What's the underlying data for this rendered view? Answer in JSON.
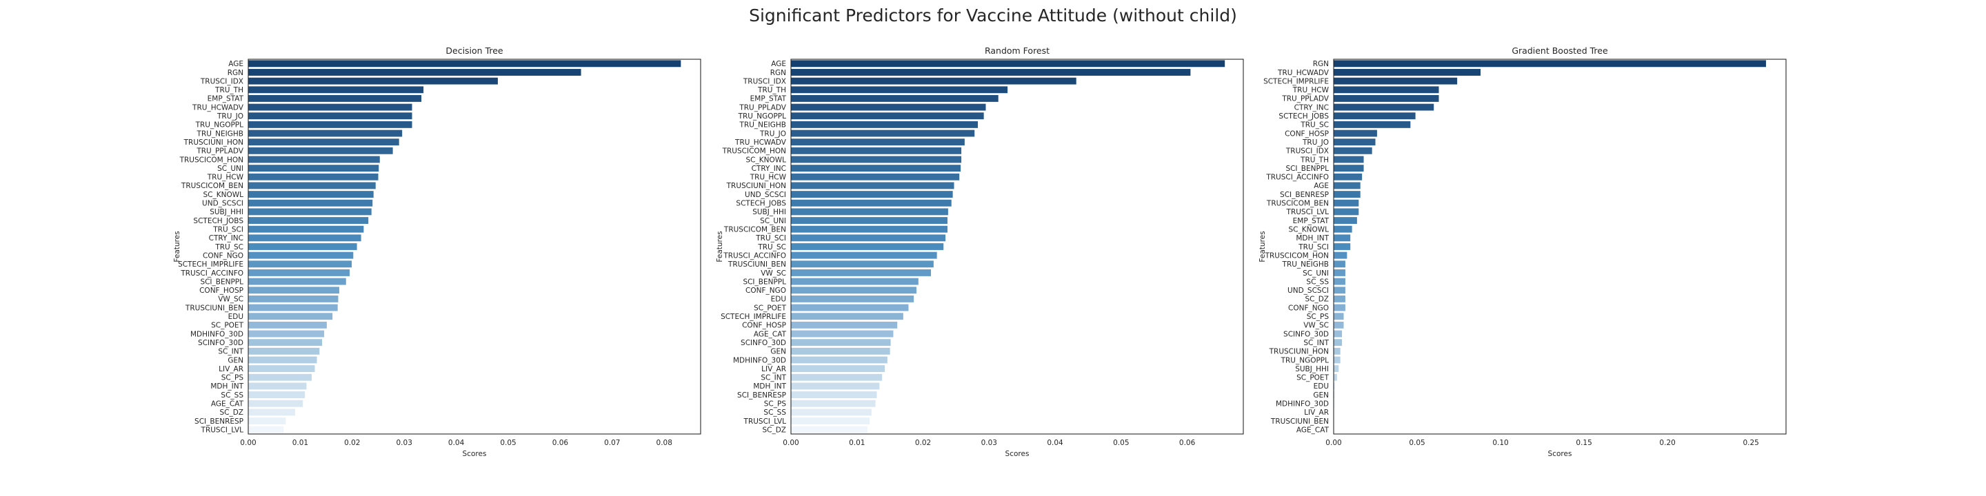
{
  "figure": {
    "title": "Significant Predictors for Vaccine Attitude (without child)"
  },
  "chart_data": [
    {
      "type": "bar",
      "orientation": "horizontal",
      "title": "Decision Tree",
      "xlabel": "Scores",
      "ylabel": "Features",
      "xlim": [
        0,
        0.087
      ],
      "xticks": [
        "0.00",
        "0.01",
        "0.02",
        "0.03",
        "0.04",
        "0.05",
        "0.06",
        "0.07",
        "0.08"
      ],
      "xtick_values": [
        0,
        0.01,
        0.02,
        0.03,
        0.04,
        0.05,
        0.06,
        0.07,
        0.08
      ],
      "grid": false,
      "colormap": "Blues_r",
      "categories": [
        "AGE",
        "RGN",
        "TRUSCI_IDX",
        "TRU_TH",
        "EMP_STAT",
        "TRU_HCWADV",
        "TRU_JO",
        "TRU_NGOPPL",
        "TRU_NEIGHB",
        "TRUSCIUNI_HON",
        "TRU_PPLADV",
        "TRUSCICOM_HON",
        "SC_UNI",
        "TRU_HCW",
        "TRUSCICOM_BEN",
        "SC_KNOWL",
        "UND_SCSCI",
        "SUBJ_HHI",
        "SCTECH_JOBS",
        "TRU_SCI",
        "CTRY_INC",
        "TRU_SC",
        "CONF_NGO",
        "SCTECH_IMPRLIFE",
        "TRUSCI_ACCINFO",
        "SCI_BENPPL",
        "CONF_HOSP",
        "VW_SC",
        "TRUSCIUNI_BEN",
        "EDU",
        "SC_POET",
        "MDHINFO_30D",
        "SCINFO_30D",
        "SC_INT",
        "GEN",
        "LIV_AR",
        "SC_PS",
        "MDH_INT",
        "SC_SS",
        "AGE_CAT",
        "SC_DZ",
        "SCI_BENRESP",
        "TRUSCI_LVL"
      ],
      "values": [
        0.0832,
        0.064,
        0.048,
        0.0337,
        0.0333,
        0.0315,
        0.0315,
        0.0315,
        0.0296,
        0.029,
        0.0278,
        0.0253,
        0.0251,
        0.025,
        0.0245,
        0.0241,
        0.0239,
        0.0237,
        0.0231,
        0.0222,
        0.0217,
        0.0209,
        0.0202,
        0.0199,
        0.0195,
        0.0188,
        0.0175,
        0.0173,
        0.0172,
        0.0162,
        0.0151,
        0.0146,
        0.0142,
        0.0137,
        0.0132,
        0.0128,
        0.0122,
        0.0112,
        0.0109,
        0.0105,
        0.009,
        0.0072,
        0.0068
      ]
    },
    {
      "type": "bar",
      "orientation": "horizontal",
      "title": "Random Forest",
      "xlabel": "Scores",
      "ylabel": "Features",
      "xlim": [
        0,
        0.0685
      ],
      "xticks": [
        "0.00",
        "0.01",
        "0.02",
        "0.03",
        "0.04",
        "0.05",
        "0.06"
      ],
      "xtick_values": [
        0,
        0.01,
        0.02,
        0.03,
        0.04,
        0.05,
        0.06
      ],
      "grid": false,
      "colormap": "Blues_r",
      "categories": [
        "AGE",
        "RGN",
        "TRUSCI_IDX",
        "TRU_TH",
        "EMP_STAT",
        "TRU_PPLADV",
        "TRU_NGOPPL",
        "TRU_NEIGHB",
        "TRU_JO",
        "TRU_HCWADV",
        "TRUSCICOM_HON",
        "SC_KNOWL",
        "CTRY_INC",
        "TRU_HCW",
        "TRUSCIUNI_HON",
        "UND_SCSCI",
        "SCTECH_JOBS",
        "SUBJ_HHI",
        "SC_UNI",
        "TRUSCICOM_BEN",
        "TRU_SCI",
        "TRU_SC",
        "TRUSCI_ACCINFO",
        "TRUSCIUNI_BEN",
        "VW_SC",
        "SCI_BENPPL",
        "CONF_NGO",
        "EDU",
        "SC_POET",
        "SCTECH_IMPRLIFE",
        "CONF_HOSP",
        "AGE_CAT",
        "SCINFO_30D",
        "GEN",
        "MDHINFO_30D",
        "LIV_AR",
        "SC_INT",
        "MDH_INT",
        "SCI_BENRESP",
        "SC_PS",
        "SC_SS",
        "TRUSCI_LVL",
        "SC_DZ"
      ],
      "values": [
        0.0657,
        0.0605,
        0.0432,
        0.0328,
        0.0314,
        0.0295,
        0.0292,
        0.0283,
        0.0278,
        0.0263,
        0.0258,
        0.0258,
        0.0257,
        0.0255,
        0.0247,
        0.0245,
        0.0243,
        0.0238,
        0.0237,
        0.0237,
        0.0234,
        0.0231,
        0.0221,
        0.0216,
        0.0212,
        0.0193,
        0.019,
        0.0186,
        0.0178,
        0.017,
        0.0161,
        0.0155,
        0.0151,
        0.015,
        0.0146,
        0.0142,
        0.0138,
        0.0134,
        0.013,
        0.0128,
        0.0122,
        0.0119,
        0.0116
      ]
    },
    {
      "type": "bar",
      "orientation": "horizontal",
      "title": "Gradient Boosted Tree",
      "xlabel": "Scores",
      "ylabel": "Features",
      "xlim": [
        0,
        0.271
      ],
      "xticks": [
        "0.00",
        "0.05",
        "0.10",
        "0.15",
        "0.20",
        "0.25"
      ],
      "xtick_values": [
        0,
        0.05,
        0.1,
        0.15,
        0.2,
        0.25
      ],
      "grid": false,
      "colormap": "Blues_r",
      "categories": [
        "RGN",
        "TRU_HCWADV",
        "SCTECH_IMPRLIFE",
        "TRU_HCW",
        "TRU_PPLADV",
        "CTRY_INC",
        "SCTECH_JOBS",
        "TRU_SC",
        "CONF_HOSP",
        "TRU_JO",
        "TRUSCI_IDX",
        "TRU_TH",
        "SCI_BENPPL",
        "TRUSCI_ACCINFO",
        "AGE",
        "SCI_BENRESP",
        "TRUSCICOM_BEN",
        "TRUSCI_LVL",
        "EMP_STAT",
        "SC_KNOWL",
        "MDH_INT",
        "TRU_SCI",
        "TRUSCICOM_HON",
        "TRU_NEIGHB",
        "SC_UNI",
        "SC_SS",
        "UND_SCSCI",
        "SC_DZ",
        "CONF_NGO",
        "SC_PS",
        "VW_SC",
        "SCINFO_30D",
        "SC_INT",
        "TRUSCIUNI_HON",
        "TRU_NGOPPL",
        "SUBJ_HHI",
        "SC_POET",
        "EDU",
        "GEN",
        "MDHINFO_30D",
        "LIV_AR",
        "TRUSCIUNI_BEN",
        "AGE_CAT"
      ],
      "values": [
        0.259,
        0.088,
        0.074,
        0.063,
        0.063,
        0.06,
        0.049,
        0.046,
        0.026,
        0.025,
        0.023,
        0.018,
        0.018,
        0.017,
        0.016,
        0.016,
        0.015,
        0.015,
        0.014,
        0.011,
        0.01,
        0.01,
        0.008,
        0.007,
        0.007,
        0.007,
        0.007,
        0.007,
        0.007,
        0.006,
        0.006,
        0.005,
        0.005,
        0.004,
        0.004,
        0.003,
        0.002,
        0.0005,
        0.0004,
        0.0003,
        0.0002,
        0.0002,
        0.0001
      ]
    }
  ]
}
